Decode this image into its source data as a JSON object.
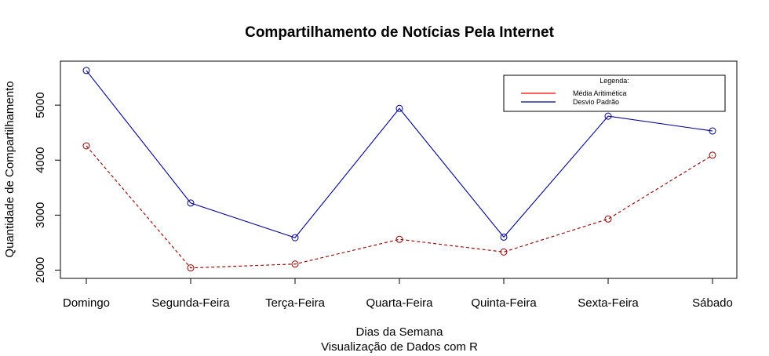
{
  "chart_data": {
    "type": "line",
    "title": "Compartilhamento de Notícias Pela Internet",
    "xlabel": "Dias da Semana",
    "subtitle": "Visualização de Dados com R",
    "ylabel": "Quantidade de Compartilhamento",
    "categories": [
      "Domingo",
      "Segunda-Feira",
      "Terça-Feira",
      "Quarta-Feira",
      "Quinta-Feira",
      "Sexta-Feira",
      "Sábado"
    ],
    "yticks": [
      2000,
      3000,
      4000,
      5000
    ],
    "ylim": [
      1850,
      5800
    ],
    "grid": false,
    "legend": {
      "title": "Legenda:",
      "placement": "top-right",
      "entries": [
        {
          "label": "Média Aritimética",
          "color": "#ff0000"
        },
        {
          "label": "Desvio Padrão",
          "color": "#00008b"
        }
      ]
    },
    "series": [
      {
        "values": [
          4260,
          2040,
          2110,
          2560,
          2330,
          2930,
          4090
        ],
        "color": "#8b0000",
        "line_style": "dashed",
        "marker": "circle"
      },
      {
        "values": [
          5630,
          3220,
          2590,
          4940,
          2600,
          4800,
          4530
        ],
        "color": "#00008b",
        "line_style": "solid",
        "marker": "circle"
      }
    ]
  }
}
